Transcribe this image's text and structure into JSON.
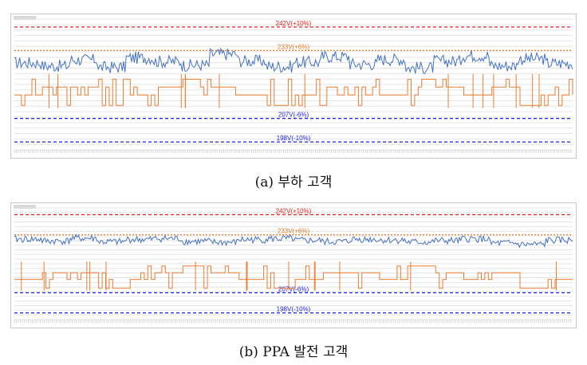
{
  "captions": {
    "a": "(a) 부하 고객",
    "b": "(b) PPA 발전 고객"
  },
  "colors": {
    "upper_limit": "#e02020",
    "nominal": "#e07820",
    "lower_limit": "#2020e0",
    "voltage_line": "#4472c4",
    "step_line": "#ed7d31",
    "grid": "#e4e4e4"
  },
  "chart_data": [
    {
      "type": "line",
      "title": "",
      "xlabel": "",
      "ylabel": "",
      "ylim": [
        195,
        245
      ],
      "grid": true,
      "reference_lines": [
        {
          "label": "242V(+10%)",
          "value": 242,
          "style": "dashed",
          "color": "#e02020"
        },
        {
          "label": "233V(+6%)",
          "value": 233,
          "style": "dotted",
          "color": "#e07820"
        },
        {
          "label": "207V(-6%)",
          "value": 207,
          "style": "dashed",
          "color": "#2020e0"
        },
        {
          "label": "198V(-10%)",
          "value": 198,
          "style": "dashed",
          "color": "#2020e0"
        }
      ],
      "series": [
        {
          "color": "#4472c4",
          "baseline": 228,
          "amplitude": 2.4,
          "values": [
            228.3,
            227.1,
            229.4,
            226.6,
            230.2,
            228.8,
            227.4,
            231.6,
            229.0,
            226.9,
            228.5,
            230.7,
            227.8,
            229.6,
            226.4,
            228.9,
            231.1,
            227.2,
            229.8,
            228.1
          ]
        },
        {
          "color": "#ed7d31",
          "shape": "step",
          "levels": [
            212,
            216,
            219,
            222
          ],
          "values": [
            216,
            219,
            219,
            212,
            216,
            219,
            222,
            219,
            216,
            212,
            216,
            219,
            219,
            216,
            222,
            219,
            216,
            219,
            212,
            216
          ]
        }
      ]
    },
    {
      "type": "line",
      "title": "",
      "xlabel": "",
      "ylabel": "",
      "ylim": [
        195,
        245
      ],
      "grid": true,
      "reference_lines": [
        {
          "label": "242V(+10%)",
          "value": 242,
          "style": "dashed",
          "color": "#e02020"
        },
        {
          "label": "233V(+6%)",
          "value": 233,
          "style": "dotted",
          "color": "#e07820"
        },
        {
          "label": "207V(-6%)",
          "value": 207,
          "style": "dashed",
          "color": "#2020e0"
        },
        {
          "label": "198V(-10%)",
          "value": 198,
          "style": "dashed",
          "color": "#2020e0"
        }
      ],
      "series": [
        {
          "color": "#4472c4",
          "baseline": 230.5,
          "amplitude": 1.6,
          "values": [
            231.0,
            230.2,
            231.4,
            229.8,
            230.9,
            231.3,
            230.0,
            229.6,
            230.8,
            231.2,
            230.4,
            229.9,
            231.0,
            230.6,
            229.7,
            230.3,
            231.1,
            229.2,
            228.6,
            230.5
          ]
        },
        {
          "color": "#ed7d31",
          "shape": "step",
          "levels": [
            209,
            213,
            216,
            219
          ],
          "values": [
            213,
            216,
            216,
            209,
            213,
            216,
            219,
            216,
            213,
            209,
            213,
            216,
            216,
            213,
            219,
            216,
            213,
            216,
            209,
            213
          ]
        }
      ]
    }
  ]
}
